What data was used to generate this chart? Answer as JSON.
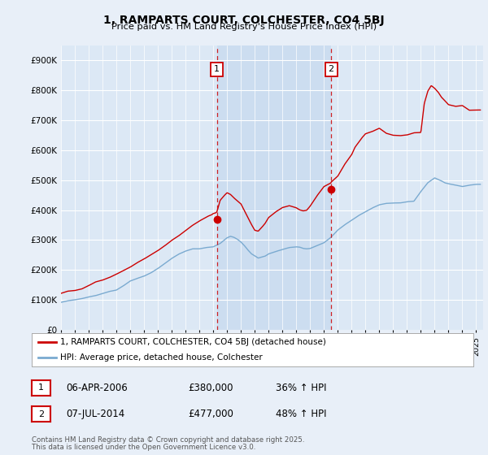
{
  "title": "1, RAMPARTS COURT, COLCHESTER, CO4 5BJ",
  "subtitle": "Price paid vs. HM Land Registry's House Price Index (HPI)",
  "xlim_start": 1995.0,
  "xlim_end": 2025.5,
  "ylim": [
    0,
    950000
  ],
  "yticks": [
    0,
    100000,
    200000,
    300000,
    400000,
    500000,
    600000,
    700000,
    800000,
    900000
  ],
  "ytick_labels": [
    "£0",
    "£100K",
    "£200K",
    "£300K",
    "£400K",
    "£500K",
    "£600K",
    "£700K",
    "£800K",
    "£900K"
  ],
  "background_color": "#e8eff8",
  "plot_bg_color": "#dce8f5",
  "shaded_region_color": "#ccddf0",
  "red_line_color": "#cc0000",
  "blue_line_color": "#7aaad0",
  "vline_color": "#cc0000",
  "sale1_x": 2006.27,
  "sale1_y": 380000,
  "sale1_dot_y": 370000,
  "sale2_x": 2014.52,
  "sale2_y": 477000,
  "sale2_dot_y": 470000,
  "legend_line1": "1, RAMPARTS COURT, COLCHESTER, CO4 5BJ (detached house)",
  "legend_line2": "HPI: Average price, detached house, Colchester",
  "footnote_line1": "Contains HM Land Registry data © Crown copyright and database right 2025.",
  "footnote_line2": "This data is licensed under the Open Government Licence v3.0.",
  "table_row1": [
    "1",
    "06-APR-2006",
    "£380,000",
    "36% ↑ HPI"
  ],
  "table_row2": [
    "2",
    "07-JUL-2014",
    "£477,000",
    "48% ↑ HPI"
  ],
  "xticks": [
    1995,
    1996,
    1997,
    1998,
    1999,
    2000,
    2001,
    2002,
    2003,
    2004,
    2005,
    2006,
    2007,
    2008,
    2009,
    2010,
    2011,
    2012,
    2013,
    2014,
    2015,
    2016,
    2017,
    2018,
    2019,
    2020,
    2021,
    2022,
    2023,
    2024,
    2025
  ],
  "hpi_years": [
    1995,
    1995.5,
    1996,
    1996.5,
    1997,
    1997.5,
    1998,
    1998.5,
    1999,
    1999.5,
    2000,
    2000.5,
    2001,
    2001.5,
    2002,
    2002.5,
    2003,
    2003.5,
    2004,
    2004.5,
    2005,
    2005.5,
    2006,
    2006.5,
    2007,
    2007.25,
    2007.5,
    2007.75,
    2008,
    2008.25,
    2008.5,
    2008.75,
    2009,
    2009.25,
    2009.5,
    2009.75,
    2010,
    2010.5,
    2011,
    2011.5,
    2012,
    2012.25,
    2012.5,
    2012.75,
    2013,
    2013.5,
    2014,
    2014.5,
    2015,
    2015.5,
    2016,
    2016.5,
    2017,
    2017.5,
    2018,
    2018.5,
    2019,
    2019.5,
    2020,
    2020.5,
    2021,
    2021.5,
    2022,
    2022.25,
    2022.5,
    2022.75,
    2023,
    2023.5,
    2024,
    2024.5,
    2025
  ],
  "hpi_vals": [
    92000,
    94000,
    98000,
    102000,
    107000,
    113000,
    120000,
    127000,
    135000,
    147000,
    162000,
    172000,
    180000,
    190000,
    205000,
    222000,
    242000,
    255000,
    265000,
    272000,
    275000,
    276000,
    278000,
    290000,
    305000,
    310000,
    308000,
    302000,
    295000,
    282000,
    268000,
    256000,
    248000,
    242000,
    245000,
    250000,
    258000,
    268000,
    272000,
    275000,
    278000,
    276000,
    272000,
    270000,
    272000,
    285000,
    298000,
    315000,
    335000,
    352000,
    368000,
    380000,
    392000,
    405000,
    415000,
    420000,
    422000,
    425000,
    428000,
    430000,
    460000,
    490000,
    510000,
    505000,
    498000,
    492000,
    490000,
    488000,
    485000,
    490000,
    495000
  ],
  "red_years": [
    1995,
    1995.5,
    1996,
    1996.5,
    1997,
    1997.5,
    1998,
    1998.5,
    1999,
    1999.5,
    2000,
    2000.5,
    2001,
    2001.5,
    2002,
    2002.5,
    2003,
    2003.5,
    2004,
    2004.5,
    2005,
    2005.3,
    2005.6,
    2005.9,
    2006,
    2006.2,
    2006.27,
    2006.5,
    2006.8,
    2007,
    2007.25,
    2007.5,
    2007.75,
    2008,
    2008.25,
    2008.5,
    2008.75,
    2009,
    2009.25,
    2009.5,
    2009.75,
    2010,
    2010.5,
    2011,
    2011.5,
    2012,
    2012.25,
    2012.5,
    2012.75,
    2013,
    2013.5,
    2014,
    2014.5,
    2014.52,
    2015,
    2015.5,
    2016,
    2016.25,
    2016.5,
    2016.75,
    2017,
    2017.5,
    2018,
    2018.5,
    2019,
    2019.5,
    2020,
    2020.5,
    2021,
    2021.25,
    2021.5,
    2021.75,
    2022,
    2022.25,
    2022.5,
    2022.75,
    2023,
    2023.5,
    2024,
    2024.5,
    2025
  ],
  "red_vals": [
    122000,
    125000,
    128000,
    133000,
    140000,
    148000,
    155000,
    163000,
    172000,
    185000,
    202000,
    215000,
    225000,
    238000,
    255000,
    272000,
    292000,
    308000,
    322000,
    335000,
    348000,
    355000,
    362000,
    368000,
    372000,
    376000,
    380000,
    415000,
    430000,
    440000,
    435000,
    425000,
    415000,
    405000,
    385000,
    362000,
    340000,
    318000,
    315000,
    325000,
    340000,
    360000,
    378000,
    390000,
    395000,
    392000,
    385000,
    382000,
    385000,
    400000,
    430000,
    462000,
    477000,
    480000,
    500000,
    540000,
    570000,
    595000,
    610000,
    625000,
    638000,
    648000,
    660000,
    645000,
    638000,
    640000,
    648000,
    655000,
    660000,
    760000,
    800000,
    820000,
    810000,
    798000,
    782000,
    772000,
    760000,
    755000,
    760000,
    745000,
    750000
  ]
}
